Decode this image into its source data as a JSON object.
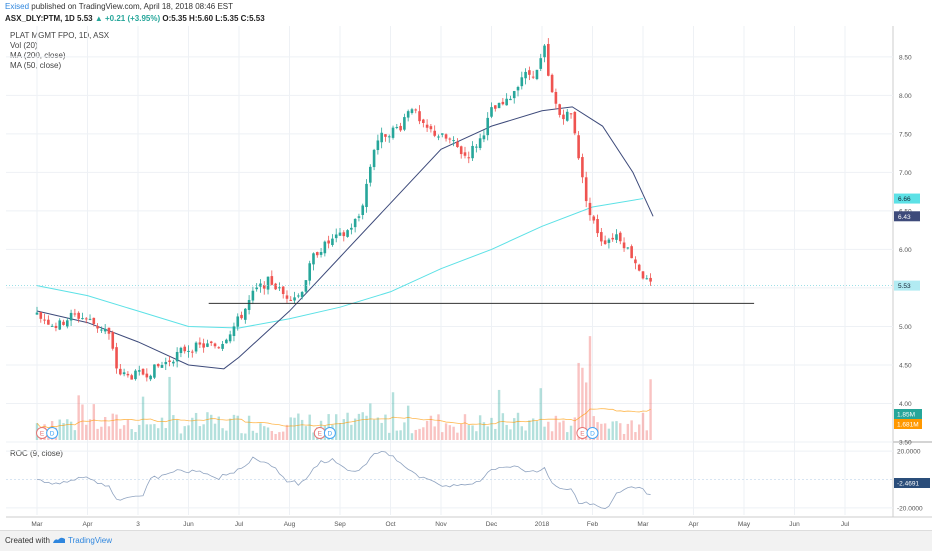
{
  "header": {
    "user": "Exised",
    "published": "published on TradingView.com, April 18, 2018 08:46 EST",
    "symbol_line": "ASX_DLY:PTM, 1D",
    "last": "5.53",
    "change": "▲ +0.21 (+3.95%)",
    "ohlc": "O:5.35 H:5.60 L:5.35 C:5.53"
  },
  "legend": {
    "title": "PLAT MGMT FPO, 1D, ASX",
    "items": [
      "Vol (20)",
      "MA (200, close)",
      "MA (50, close)"
    ]
  },
  "roc_label": "ROC (9, close)",
  "footer": {
    "created": "Created with",
    "brand": "TradingView"
  },
  "colors": {
    "up": "#26a69a",
    "down": "#ef5350",
    "ma200": "#5ce1e6",
    "ma50": "#3d4a7a",
    "support": "#333333",
    "grid": "#eef1f5"
  },
  "chart_data": {
    "type": "candlestick",
    "ylim": [
      3.5,
      8.9
    ],
    "y_ticks": [
      "8.50",
      "8.00",
      "7.50",
      "7.00",
      "6.50",
      "6.00",
      "5.50",
      "5.00",
      "4.50",
      "4.00",
      "3.50"
    ],
    "x_ticks": [
      "Mar",
      "Apr",
      "3",
      "Jun",
      "Jul",
      "Aug",
      "Sep",
      "Oct",
      "Nov",
      "Dec",
      "2018",
      "Feb",
      "Mar",
      "Apr",
      "May",
      "Jun",
      "Jul"
    ],
    "x_tick_positions": [
      0,
      1,
      2,
      3,
      4,
      5,
      6,
      7,
      8,
      9,
      10,
      11,
      12,
      13,
      14,
      15,
      16
    ],
    "price_path": [
      [
        0,
        5.15
      ],
      [
        0.4,
        5.0
      ],
      [
        0.7,
        5.15
      ],
      [
        1.0,
        5.1
      ],
      [
        1.2,
        5.0
      ],
      [
        1.4,
        4.95
      ],
      [
        1.6,
        4.4
      ],
      [
        1.8,
        4.35
      ],
      [
        2.2,
        4.4
      ],
      [
        2.6,
        4.55
      ],
      [
        2.9,
        4.7
      ],
      [
        3.3,
        4.75
      ],
      [
        3.6,
        4.75
      ],
      [
        3.9,
        5.0
      ],
      [
        4.1,
        5.2
      ],
      [
        4.3,
        5.45
      ],
      [
        4.6,
        5.6
      ],
      [
        4.9,
        5.4
      ],
      [
        5.2,
        5.4
      ],
      [
        5.5,
        5.95
      ],
      [
        5.8,
        6.1
      ],
      [
        6.1,
        6.2
      ],
      [
        6.4,
        6.45
      ],
      [
        6.7,
        7.4
      ],
      [
        6.9,
        7.5
      ],
      [
        7.2,
        7.6
      ],
      [
        7.4,
        7.9
      ],
      [
        7.6,
        7.6
      ],
      [
        7.9,
        7.5
      ],
      [
        8.2,
        7.4
      ],
      [
        8.5,
        7.2
      ],
      [
        8.8,
        7.45
      ],
      [
        9.0,
        7.8
      ],
      [
        9.3,
        7.9
      ],
      [
        9.6,
        8.25
      ],
      [
        9.9,
        8.3
      ],
      [
        10.05,
        8.6
      ],
      [
        10.15,
        8.1
      ],
      [
        10.35,
        7.75
      ],
      [
        10.6,
        7.75
      ],
      [
        10.8,
        6.9
      ],
      [
        10.95,
        6.45
      ],
      [
        11.2,
        6.1
      ],
      [
        11.5,
        6.2
      ],
      [
        11.8,
        5.9
      ],
      [
        12.05,
        5.6
      ],
      [
        12.15,
        5.53
      ]
    ],
    "ma200_path": [
      [
        0,
        5.53
      ],
      [
        1.0,
        5.4
      ],
      [
        2.0,
        5.2
      ],
      [
        3.0,
        5.0
      ],
      [
        4.0,
        4.98
      ],
      [
        5.0,
        5.1
      ],
      [
        6.0,
        5.25
      ],
      [
        7.0,
        5.45
      ],
      [
        8.0,
        5.75
      ],
      [
        9.0,
        6.0
      ],
      [
        10.0,
        6.3
      ],
      [
        11.0,
        6.55
      ],
      [
        12.0,
        6.66
      ]
    ],
    "ma50_path": [
      [
        0,
        5.2
      ],
      [
        1.0,
        5.05
      ],
      [
        2.0,
        4.8
      ],
      [
        3.0,
        4.5
      ],
      [
        3.7,
        4.45
      ],
      [
        4.0,
        4.6
      ],
      [
        5.0,
        5.2
      ],
      [
        6.0,
        5.9
      ],
      [
        7.0,
        6.6
      ],
      [
        8.0,
        7.3
      ],
      [
        9.0,
        7.6
      ],
      [
        10.0,
        7.8
      ],
      [
        10.6,
        7.85
      ],
      [
        11.2,
        7.6
      ],
      [
        11.8,
        7.0
      ],
      [
        12.2,
        6.43
      ]
    ],
    "support_level": 5.3,
    "support_range": [
      3.4,
      14.2
    ],
    "last_price_line": 5.53,
    "price_tags": [
      {
        "label": "6.66",
        "value": 6.66,
        "color": "#5ce1e6"
      },
      {
        "label": "6.43",
        "value": 6.43,
        "color": "#3d4a7a"
      },
      {
        "label": "5.53",
        "value": 5.53,
        "color": "#b2ebf2"
      }
    ],
    "volume": {
      "tags": [
        {
          "label": "1.85M",
          "color": "#26a69a"
        },
        {
          "label": "1.681M",
          "color": "#ff9800"
        }
      ]
    },
    "events": [
      {
        "x": 0.1,
        "label": "E"
      },
      {
        "x": 0.3,
        "label": "D"
      },
      {
        "x": 5.6,
        "label": "E"
      },
      {
        "x": 5.8,
        "label": "D"
      },
      {
        "x": 10.8,
        "label": "E"
      },
      {
        "x": 11.0,
        "label": "D"
      }
    ],
    "roc": {
      "ylim": [
        -25,
        25
      ],
      "ticks": [
        "20.0000",
        "-20.0000"
      ],
      "tick_values": [
        20,
        -20
      ],
      "last_label": "-2.4691",
      "last_value": -2.4691
    }
  }
}
